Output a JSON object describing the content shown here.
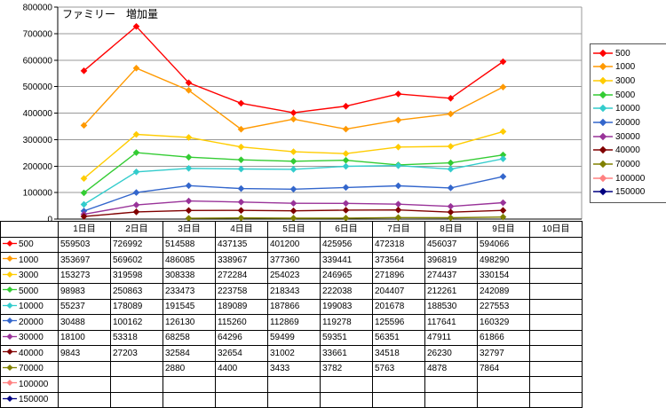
{
  "chart_data": {
    "type": "line",
    "title": "ファミリー　増加量",
    "categories": [
      "1日目",
      "2日目",
      "3日目",
      "4日目",
      "5日目",
      "6日目",
      "7日目",
      "8日目",
      "9日目",
      "10日目"
    ],
    "xlabel": "",
    "ylabel": "",
    "ylim": [
      0,
      800000
    ],
    "ytick_step": 100000,
    "grid": true,
    "legend_position": "right",
    "marker": "diamond",
    "series": [
      {
        "name": "500",
        "color": "#FF0000",
        "values": [
          559503,
          726992,
          514588,
          437135,
          401200,
          425956,
          472318,
          456037,
          594066,
          null
        ]
      },
      {
        "name": "1000",
        "color": "#FF9900",
        "values": [
          353697,
          569602,
          486085,
          338967,
          377360,
          339441,
          373564,
          396819,
          498290,
          null
        ]
      },
      {
        "name": "3000",
        "color": "#FFCC00",
        "values": [
          153273,
          319598,
          308338,
          272284,
          254023,
          246965,
          271896,
          274437,
          330154,
          null
        ]
      },
      {
        "name": "5000",
        "color": "#33CC33",
        "values": [
          98983,
          250863,
          233473,
          223758,
          218343,
          222038,
          204407,
          212261,
          242089,
          null
        ]
      },
      {
        "name": "10000",
        "color": "#33CCCC",
        "values": [
          55237,
          178089,
          191545,
          189089,
          187866,
          199083,
          201678,
          188530,
          227553,
          null
        ]
      },
      {
        "name": "20000",
        "color": "#3366CC",
        "values": [
          30488,
          100162,
          126130,
          115260,
          112869,
          119278,
          125596,
          117641,
          160329,
          null
        ]
      },
      {
        "name": "30000",
        "color": "#993399",
        "values": [
          18100,
          53318,
          68258,
          64296,
          59499,
          59351,
          56351,
          47911,
          61866,
          null
        ]
      },
      {
        "name": "40000",
        "color": "#800000",
        "values": [
          9843,
          27203,
          32584,
          32654,
          31002,
          33661,
          34518,
          26230,
          32797,
          null
        ]
      },
      {
        "name": "70000",
        "color": "#808000",
        "values": [
          null,
          null,
          2880,
          4400,
          3433,
          3782,
          5763,
          4878,
          7864,
          null
        ]
      },
      {
        "name": "100000",
        "color": "#FF8080",
        "values": [
          null,
          null,
          null,
          null,
          null,
          null,
          null,
          null,
          null,
          null
        ]
      },
      {
        "name": "150000",
        "color": "#000080",
        "values": [
          null,
          null,
          null,
          null,
          null,
          null,
          null,
          null,
          null,
          null
        ]
      }
    ]
  }
}
